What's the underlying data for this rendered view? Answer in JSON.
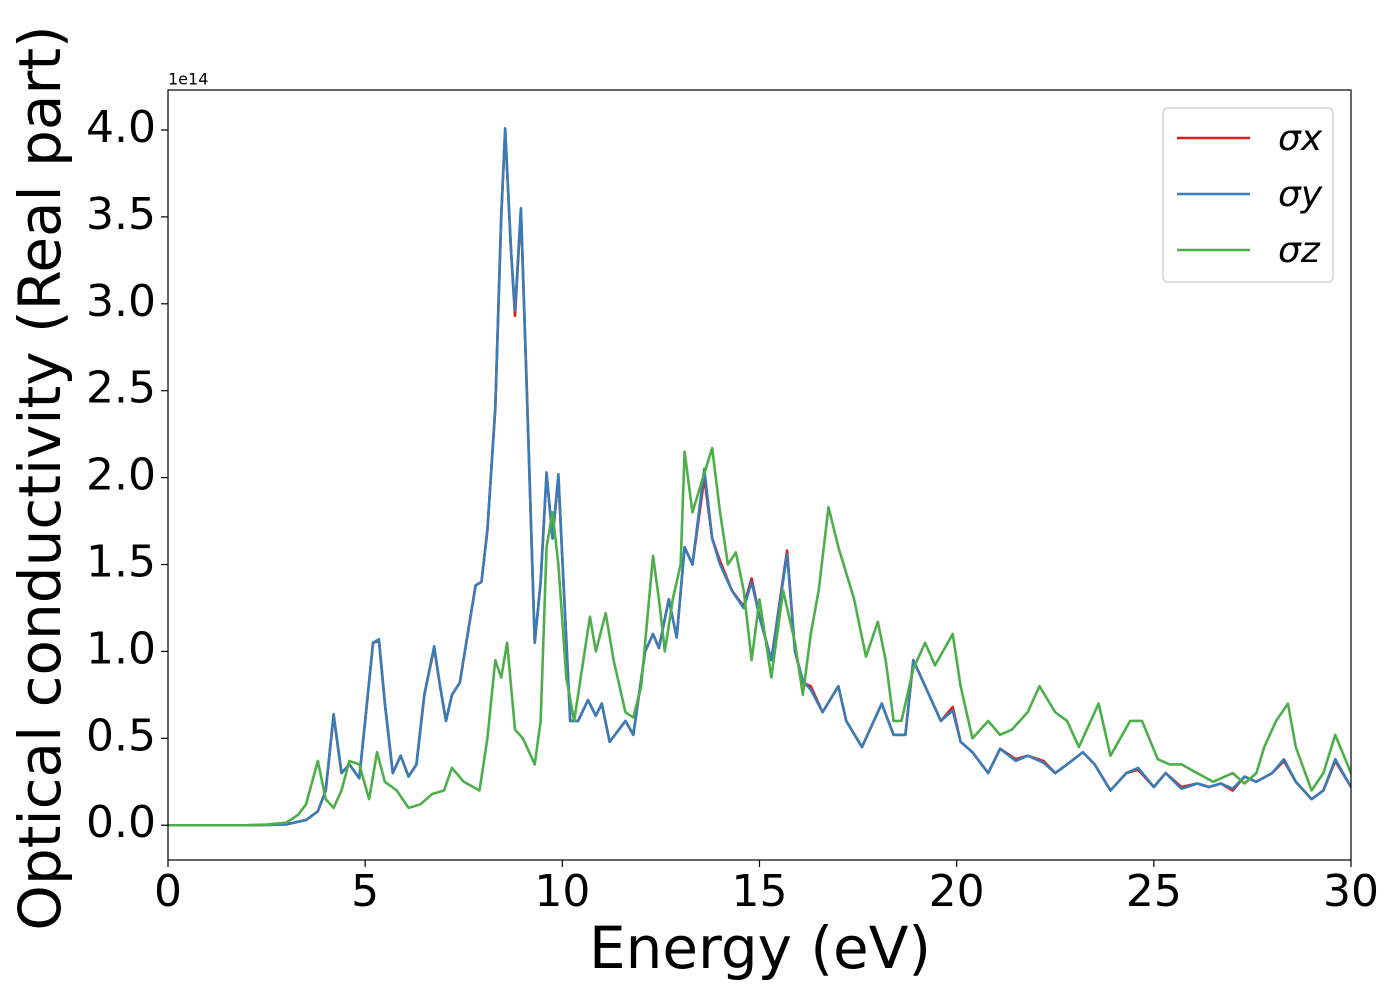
{
  "chart_data": {
    "type": "line",
    "x_label": "Energy (eV)",
    "y_label": "Optical conductivity (Real part)",
    "y_offset_label": "1e14",
    "xlim": [
      0,
      30
    ],
    "xticks": [
      0,
      5,
      10,
      15,
      20,
      25,
      30
    ],
    "ylim": [
      -0.2,
      4.23
    ],
    "yticks": [
      {
        "value": 0,
        "label": "0.0"
      },
      {
        "value": 0.5,
        "label": "0.5"
      },
      {
        "value": 1,
        "label": "1.0"
      },
      {
        "value": 1.5,
        "label": "1.5"
      },
      {
        "value": 2,
        "label": "2.0"
      },
      {
        "value": 2.5,
        "label": "2.5"
      },
      {
        "value": 3,
        "label": "3.0"
      },
      {
        "value": 3.5,
        "label": "3.5"
      },
      {
        "value": 4,
        "label": "4.0"
      }
    ],
    "grid": false,
    "legend": "upper right",
    "series": [
      {
        "name": "σx",
        "color": "#e41a1c",
        "x": [
          0,
          1,
          2,
          2.5,
          3,
          3.5,
          3.8,
          4,
          4.2,
          4.4,
          4.6,
          4.85,
          5,
          5.2,
          5.35,
          5.5,
          5.7,
          5.9,
          6.1,
          6.3,
          6.5,
          6.75,
          6.9,
          7.05,
          7.2,
          7.4,
          7.6,
          7.8,
          7.95,
          8.1,
          8.3,
          8.45,
          8.55,
          8.7,
          8.8,
          8.95,
          9.1,
          9.3,
          9.45,
          9.6,
          9.75,
          9.9,
          10.05,
          10.2,
          10.4,
          10.65,
          10.85,
          11,
          11.2,
          11.6,
          11.8,
          12.1,
          12.3,
          12.45,
          12.7,
          12.9,
          13.1,
          13.3,
          13.6,
          13.8,
          14,
          14.3,
          14.6,
          14.8,
          15,
          15.3,
          15.7,
          15.9,
          16.1,
          16.3,
          16.6,
          17,
          17.2,
          17.6,
          18.1,
          18.4,
          18.7,
          18.9,
          19.2,
          19.6,
          19.9,
          20.1,
          20.4,
          20.8,
          21.1,
          21.5,
          21.8,
          22.2,
          22.5,
          22.8,
          23.2,
          23.5,
          23.9,
          24.3,
          24.6,
          25,
          25.3,
          25.7,
          26.1,
          26.4,
          26.7,
          27,
          27.3,
          27.6,
          28,
          28.3,
          28.6,
          29,
          29.3,
          29.6,
          30
        ],
        "values": [
          0,
          0,
          0,
          0.002,
          0.005,
          0.03,
          0.08,
          0.2,
          0.63,
          0.3,
          0.35,
          0.27,
          0.6,
          1.05,
          1.06,
          0.7,
          0.3,
          0.4,
          0.28,
          0.35,
          0.75,
          1.02,
          0.8,
          0.6,
          0.75,
          0.82,
          1.1,
          1.38,
          1.4,
          1.7,
          2.4,
          3.5,
          4.0,
          3.3,
          2.93,
          3.54,
          2.5,
          1.05,
          1.4,
          2.02,
          1.65,
          2.0,
          1.3,
          0.6,
          0.6,
          0.72,
          0.63,
          0.7,
          0.48,
          0.6,
          0.52,
          1.0,
          1.1,
          1.02,
          1.3,
          1.08,
          1.6,
          1.5,
          2.0,
          1.65,
          1.52,
          1.35,
          1.26,
          1.42,
          1.2,
          0.95,
          1.58,
          1.0,
          0.82,
          0.8,
          0.65,
          0.8,
          0.6,
          0.45,
          0.7,
          0.52,
          0.52,
          0.95,
          0.8,
          0.6,
          0.68,
          0.48,
          0.42,
          0.3,
          0.44,
          0.38,
          0.4,
          0.37,
          0.3,
          0.35,
          0.42,
          0.35,
          0.2,
          0.3,
          0.32,
          0.22,
          0.3,
          0.22,
          0.24,
          0.22,
          0.24,
          0.2,
          0.28,
          0.25,
          0.3,
          0.37,
          0.25,
          0.15,
          0.2,
          0.37,
          0.22
        ]
      },
      {
        "name": "σy",
        "color": "#377eb8",
        "x": [
          0,
          1,
          2,
          2.5,
          3,
          3.5,
          3.8,
          4,
          4.2,
          4.4,
          4.6,
          4.85,
          5,
          5.2,
          5.35,
          5.5,
          5.7,
          5.9,
          6.1,
          6.3,
          6.5,
          6.75,
          6.9,
          7.05,
          7.2,
          7.4,
          7.6,
          7.8,
          7.95,
          8.1,
          8.3,
          8.45,
          8.55,
          8.7,
          8.8,
          8.95,
          9.1,
          9.3,
          9.45,
          9.6,
          9.75,
          9.9,
          10.05,
          10.2,
          10.4,
          10.65,
          10.85,
          11,
          11.2,
          11.6,
          11.8,
          12.1,
          12.3,
          12.45,
          12.7,
          12.9,
          13.1,
          13.3,
          13.6,
          13.8,
          14,
          14.3,
          14.6,
          14.8,
          15,
          15.3,
          15.7,
          15.9,
          16.1,
          16.3,
          16.6,
          17,
          17.2,
          17.6,
          18.1,
          18.4,
          18.7,
          18.9,
          19.2,
          19.6,
          19.9,
          20.1,
          20.4,
          20.8,
          21.1,
          21.5,
          21.8,
          22.2,
          22.5,
          22.8,
          23.2,
          23.5,
          23.9,
          24.3,
          24.6,
          25,
          25.3,
          25.7,
          26.1,
          26.4,
          26.7,
          27,
          27.3,
          27.6,
          28,
          28.3,
          28.6,
          29,
          29.3,
          29.6,
          30
        ],
        "values": [
          0,
          0,
          0,
          0.002,
          0.005,
          0.03,
          0.08,
          0.2,
          0.64,
          0.3,
          0.35,
          0.27,
          0.6,
          1.05,
          1.07,
          0.7,
          0.3,
          0.4,
          0.28,
          0.35,
          0.75,
          1.03,
          0.8,
          0.6,
          0.75,
          0.82,
          1.1,
          1.38,
          1.4,
          1.7,
          2.4,
          3.5,
          4.01,
          3.3,
          2.96,
          3.55,
          2.5,
          1.05,
          1.4,
          2.03,
          1.65,
          2.02,
          1.3,
          0.6,
          0.6,
          0.72,
          0.63,
          0.7,
          0.48,
          0.6,
          0.52,
          1.0,
          1.1,
          1.02,
          1.3,
          1.08,
          1.6,
          1.5,
          2.05,
          1.65,
          1.5,
          1.35,
          1.25,
          1.4,
          1.2,
          0.95,
          1.56,
          1.0,
          0.83,
          0.78,
          0.65,
          0.8,
          0.6,
          0.45,
          0.7,
          0.52,
          0.52,
          0.95,
          0.8,
          0.6,
          0.66,
          0.48,
          0.42,
          0.3,
          0.44,
          0.37,
          0.4,
          0.36,
          0.3,
          0.35,
          0.42,
          0.35,
          0.2,
          0.3,
          0.33,
          0.22,
          0.3,
          0.21,
          0.24,
          0.22,
          0.24,
          0.21,
          0.28,
          0.25,
          0.3,
          0.38,
          0.25,
          0.15,
          0.2,
          0.38,
          0.22
        ]
      },
      {
        "name": "σz",
        "color": "#4daf4a",
        "x": [
          0,
          1,
          2,
          2.5,
          3,
          3.3,
          3.5,
          3.8,
          4,
          4.2,
          4.4,
          4.6,
          4.85,
          5.1,
          5.3,
          5.5,
          5.8,
          6.1,
          6.4,
          6.7,
          7,
          7.2,
          7.5,
          7.9,
          8.1,
          8.3,
          8.45,
          8.6,
          8.8,
          9,
          9.3,
          9.45,
          9.6,
          9.75,
          9.9,
          10.1,
          10.3,
          10.5,
          10.7,
          10.85,
          11.1,
          11.3,
          11.6,
          11.8,
          12,
          12.3,
          12.45,
          12.6,
          12.8,
          13,
          13.1,
          13.3,
          13.5,
          13.8,
          14,
          14.2,
          14.4,
          14.6,
          14.8,
          15,
          15.3,
          15.6,
          15.9,
          16.1,
          16.3,
          16.5,
          16.75,
          17,
          17.4,
          17.7,
          18,
          18.2,
          18.4,
          18.6,
          18.9,
          19.2,
          19.45,
          19.9,
          20.1,
          20.4,
          20.8,
          21.1,
          21.4,
          21.8,
          22.1,
          22.5,
          22.8,
          23.1,
          23.6,
          23.9,
          24.4,
          24.7,
          25.1,
          25.4,
          25.7,
          26.1,
          26.5,
          27,
          27.3,
          27.6,
          27.8,
          28.1,
          28.4,
          28.6,
          29,
          29.3,
          29.6,
          30
        ],
        "values": [
          0,
          0,
          0,
          0.004,
          0.015,
          0.06,
          0.12,
          0.37,
          0.15,
          0.1,
          0.2,
          0.37,
          0.35,
          0.15,
          0.42,
          0.25,
          0.2,
          0.1,
          0.12,
          0.18,
          0.2,
          0.33,
          0.25,
          0.2,
          0.5,
          0.95,
          0.85,
          1.05,
          0.55,
          0.5,
          0.35,
          0.6,
          1.6,
          1.8,
          1.5,
          0.85,
          0.6,
          0.9,
          1.2,
          1.0,
          1.22,
          0.95,
          0.65,
          0.62,
          0.8,
          1.55,
          1.3,
          1.0,
          1.3,
          1.5,
          2.15,
          1.8,
          1.95,
          2.17,
          1.8,
          1.5,
          1.57,
          1.35,
          0.95,
          1.3,
          0.85,
          1.35,
          1.05,
          0.75,
          1.1,
          1.35,
          1.83,
          1.6,
          1.3,
          0.97,
          1.17,
          0.95,
          0.6,
          0.6,
          0.9,
          1.05,
          0.92,
          1.1,
          0.8,
          0.5,
          0.6,
          0.52,
          0.55,
          0.65,
          0.8,
          0.65,
          0.6,
          0.45,
          0.7,
          0.4,
          0.6,
          0.6,
          0.38,
          0.35,
          0.35,
          0.3,
          0.25,
          0.3,
          0.24,
          0.3,
          0.45,
          0.6,
          0.7,
          0.45,
          0.2,
          0.3,
          0.52,
          0.3
        ]
      }
    ]
  }
}
